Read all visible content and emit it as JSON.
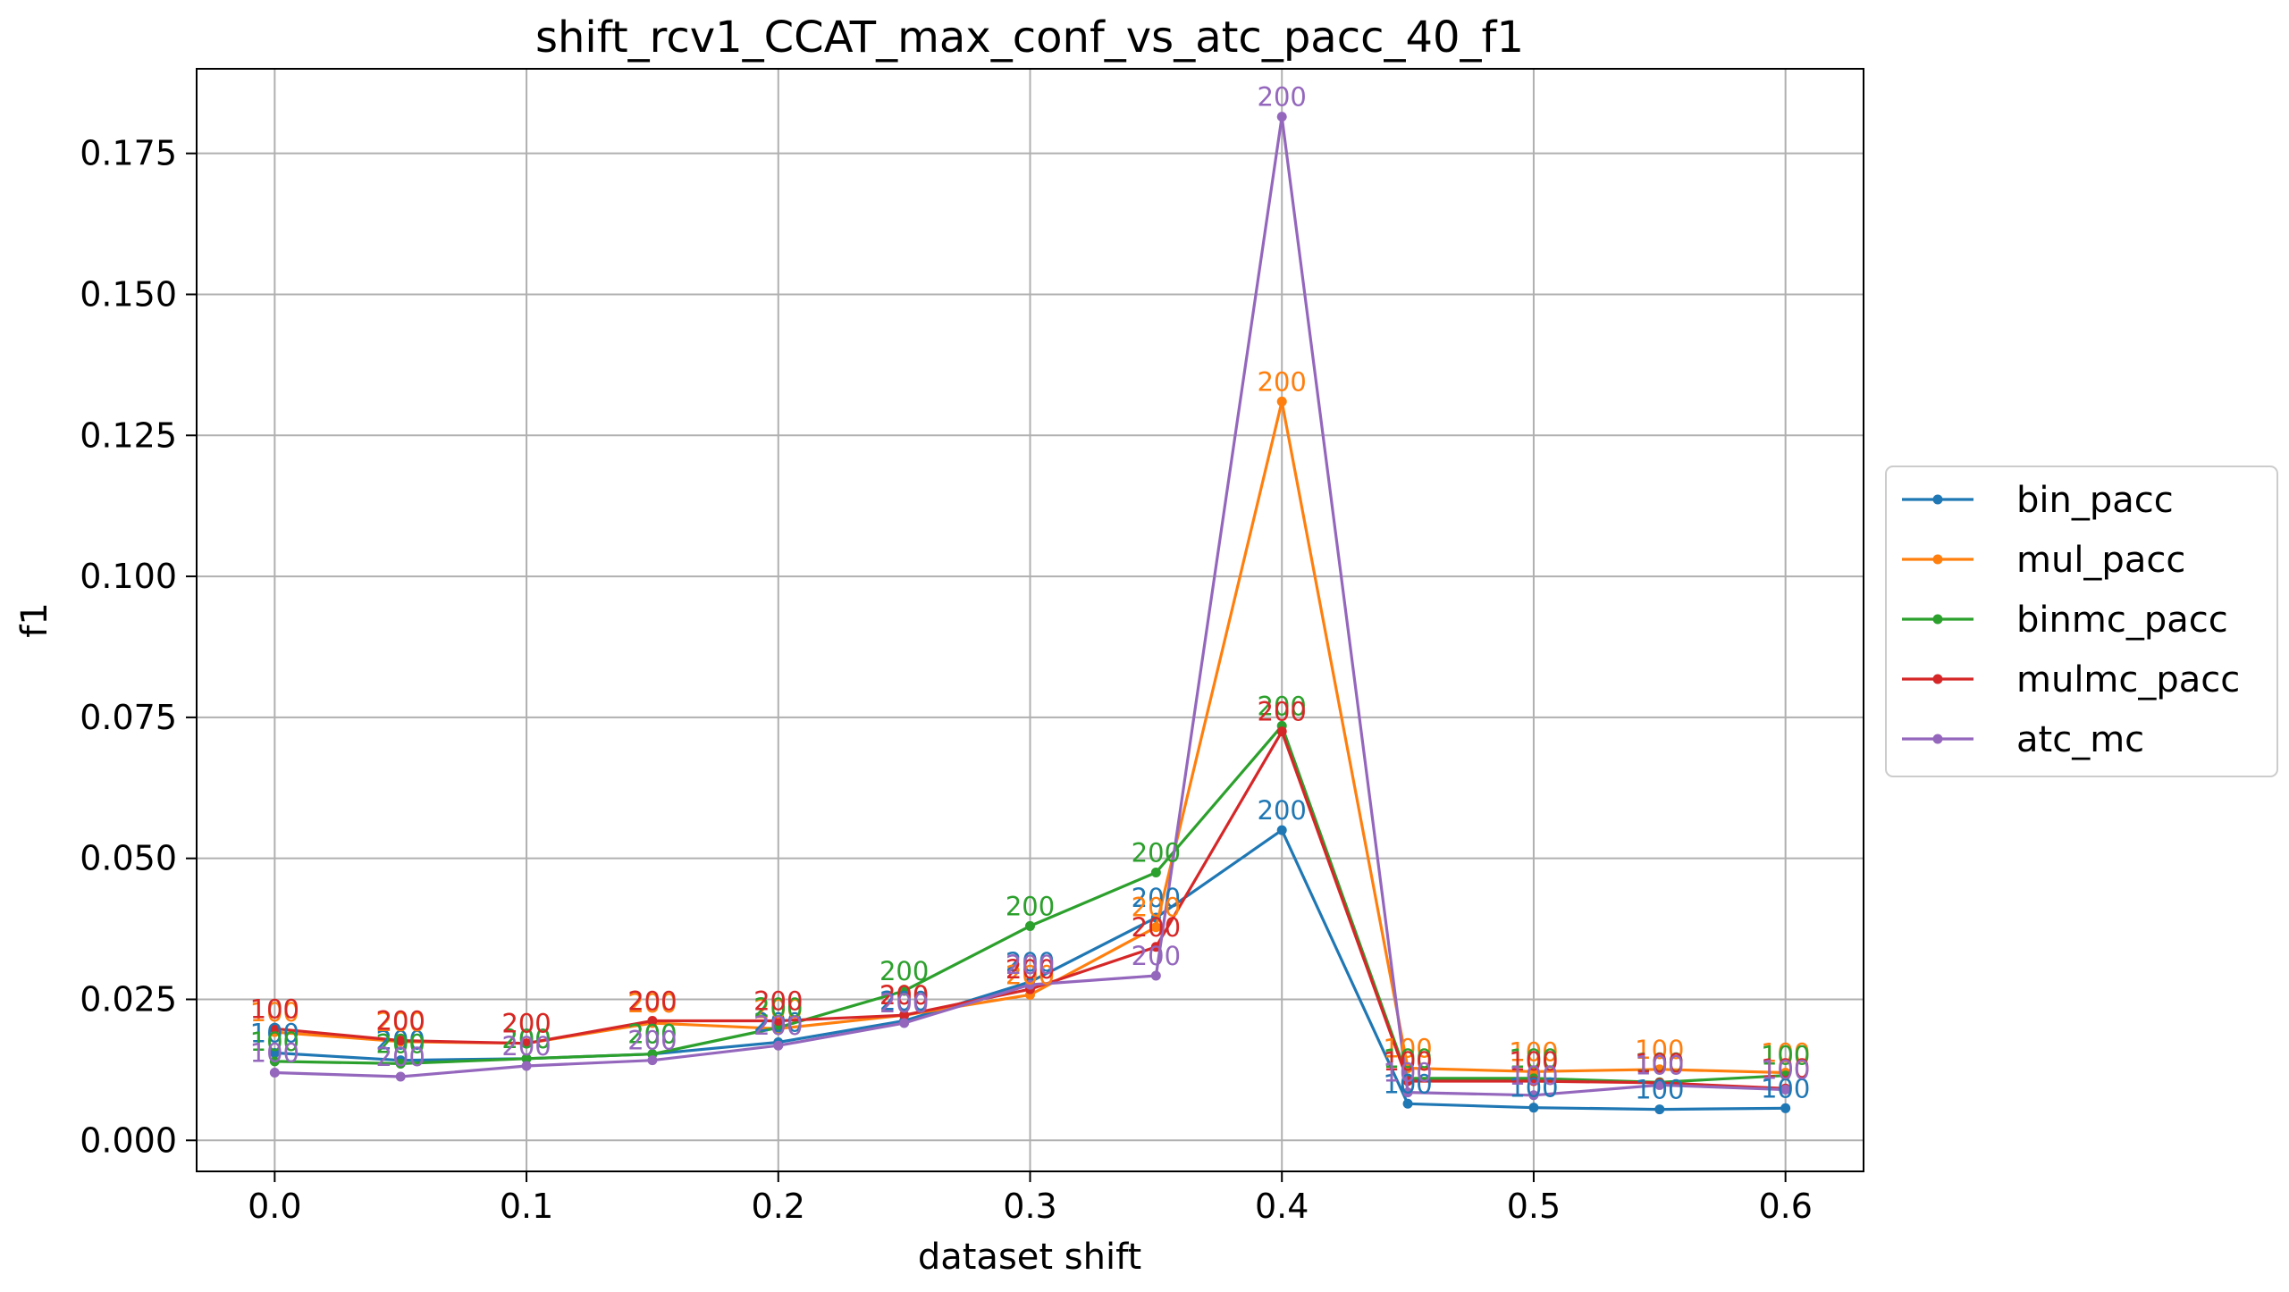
{
  "chart_data": {
    "type": "line",
    "title": "shift_rcv1_CCAT_max_conf_vs_atc_pacc_40_f1",
    "xlabel": "dataset shift",
    "ylabel": "f1",
    "xlim": [
      -0.031,
      0.631
    ],
    "ylim": [
      -0.0055,
      0.19
    ],
    "grid": true,
    "legend_position": "right",
    "x_ticks": [
      0.0,
      0.1,
      0.2,
      0.3,
      0.4,
      0.5,
      0.6
    ],
    "x_tick_labels": [
      "0.0",
      "0.1",
      "0.2",
      "0.3",
      "0.4",
      "0.5",
      "0.6"
    ],
    "y_ticks": [
      0.0,
      0.025,
      0.05,
      0.075,
      0.1,
      0.125,
      0.15,
      0.175
    ],
    "y_tick_labels": [
      "0.000",
      "0.025",
      "0.050",
      "0.075",
      "0.100",
      "0.125",
      "0.150",
      "0.175"
    ],
    "x": [
      0.0,
      0.05,
      0.1,
      0.15,
      0.2,
      0.25,
      0.3,
      0.35,
      0.4,
      0.45,
      0.5,
      0.55,
      0.6
    ],
    "series": [
      {
        "name": "bin_pacc",
        "color": "#1f77b4",
        "values": [
          0.0155,
          0.0142,
          0.0145,
          0.0153,
          0.0174,
          0.0212,
          0.0281,
          0.0395,
          0.055,
          0.0065,
          0.0058,
          0.0055,
          0.0057
        ],
        "labels": [
          "100",
          "200",
          "200",
          "200",
          "200",
          "200",
          "200",
          "200",
          "200",
          "100",
          "100",
          "100",
          "100"
        ]
      },
      {
        "name": "mul_pacc",
        "color": "#ff7f0e",
        "values": [
          0.0192,
          0.0175,
          0.0172,
          0.0208,
          0.0198,
          0.0222,
          0.0258,
          0.0378,
          0.131,
          0.0128,
          0.0122,
          0.0126,
          0.012
        ],
        "labels": [
          "100",
          "200",
          "200",
          "200",
          "200",
          "200",
          "200",
          "200",
          "200",
          "100",
          "100",
          "100",
          "100"
        ]
      },
      {
        "name": "binmc_pacc",
        "color": "#2ca02c",
        "values": [
          0.014,
          0.0136,
          0.0145,
          0.0153,
          0.02,
          0.0265,
          0.038,
          0.0475,
          0.0735,
          0.011,
          0.011,
          0.0103,
          0.0115
        ],
        "labels": [
          "100",
          "200",
          "200",
          "200",
          "200",
          "200",
          "200",
          "200",
          "200",
          "100",
          "100",
          "100",
          "100"
        ]
      },
      {
        "name": "mulmc_pacc",
        "color": "#d62728",
        "values": [
          0.0198,
          0.0177,
          0.0172,
          0.0212,
          0.0212,
          0.0222,
          0.0268,
          0.0343,
          0.0725,
          0.0105,
          0.0105,
          0.0102,
          0.0092
        ],
        "labels": [
          "100",
          "200",
          "200",
          "200",
          "200",
          "200",
          "200",
          "200",
          "200",
          "100",
          "100",
          "100",
          "100"
        ]
      },
      {
        "name": "atc_mc",
        "color": "#9467bd",
        "values": [
          0.012,
          0.0113,
          0.0132,
          0.0142,
          0.0168,
          0.0208,
          0.0276,
          0.0292,
          0.1815,
          0.0085,
          0.008,
          0.0098,
          0.009
        ],
        "labels": [
          "100",
          "200",
          "200",
          "200",
          "200",
          "200",
          "200",
          "200",
          "200",
          "100",
          "100",
          "100",
          "100"
        ]
      }
    ]
  }
}
